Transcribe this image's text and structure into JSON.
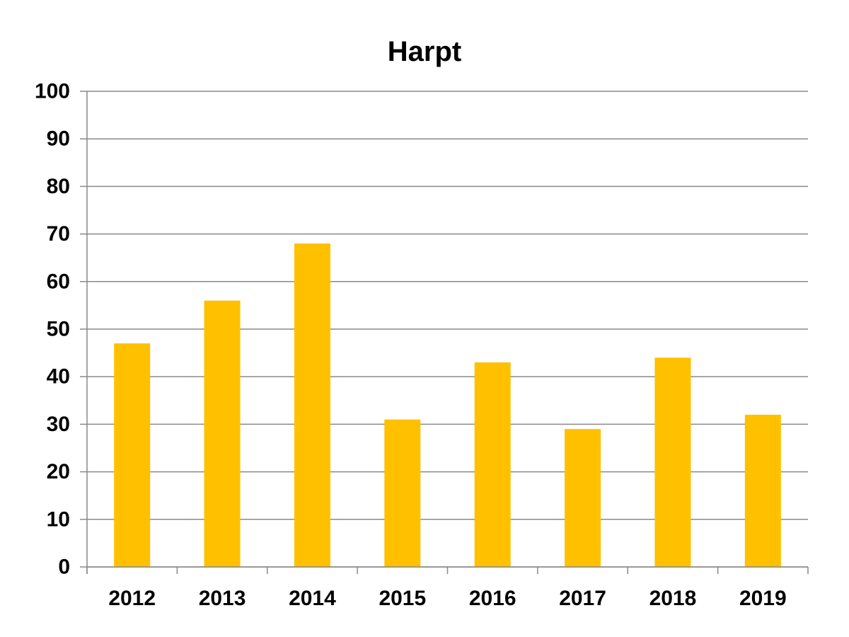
{
  "chart_data": {
    "type": "bar",
    "title": "Harpt",
    "categories": [
      "2012",
      "2013",
      "2014",
      "2015",
      "2016",
      "2017",
      "2018",
      "2019"
    ],
    "values": [
      47,
      56,
      68,
      31,
      43,
      29,
      44,
      32
    ],
    "xlabel": "",
    "ylabel": "",
    "ylim": [
      0,
      100
    ],
    "yticks": [
      0,
      10,
      20,
      30,
      40,
      50,
      60,
      70,
      80,
      90,
      100
    ],
    "grid": "horizontal",
    "legend_position": "none",
    "bar_color": "#FFC000",
    "gridline_color": "#898989",
    "axis_color": "#898989",
    "text_color": "#000000",
    "background_color": "#FFFFFF"
  }
}
